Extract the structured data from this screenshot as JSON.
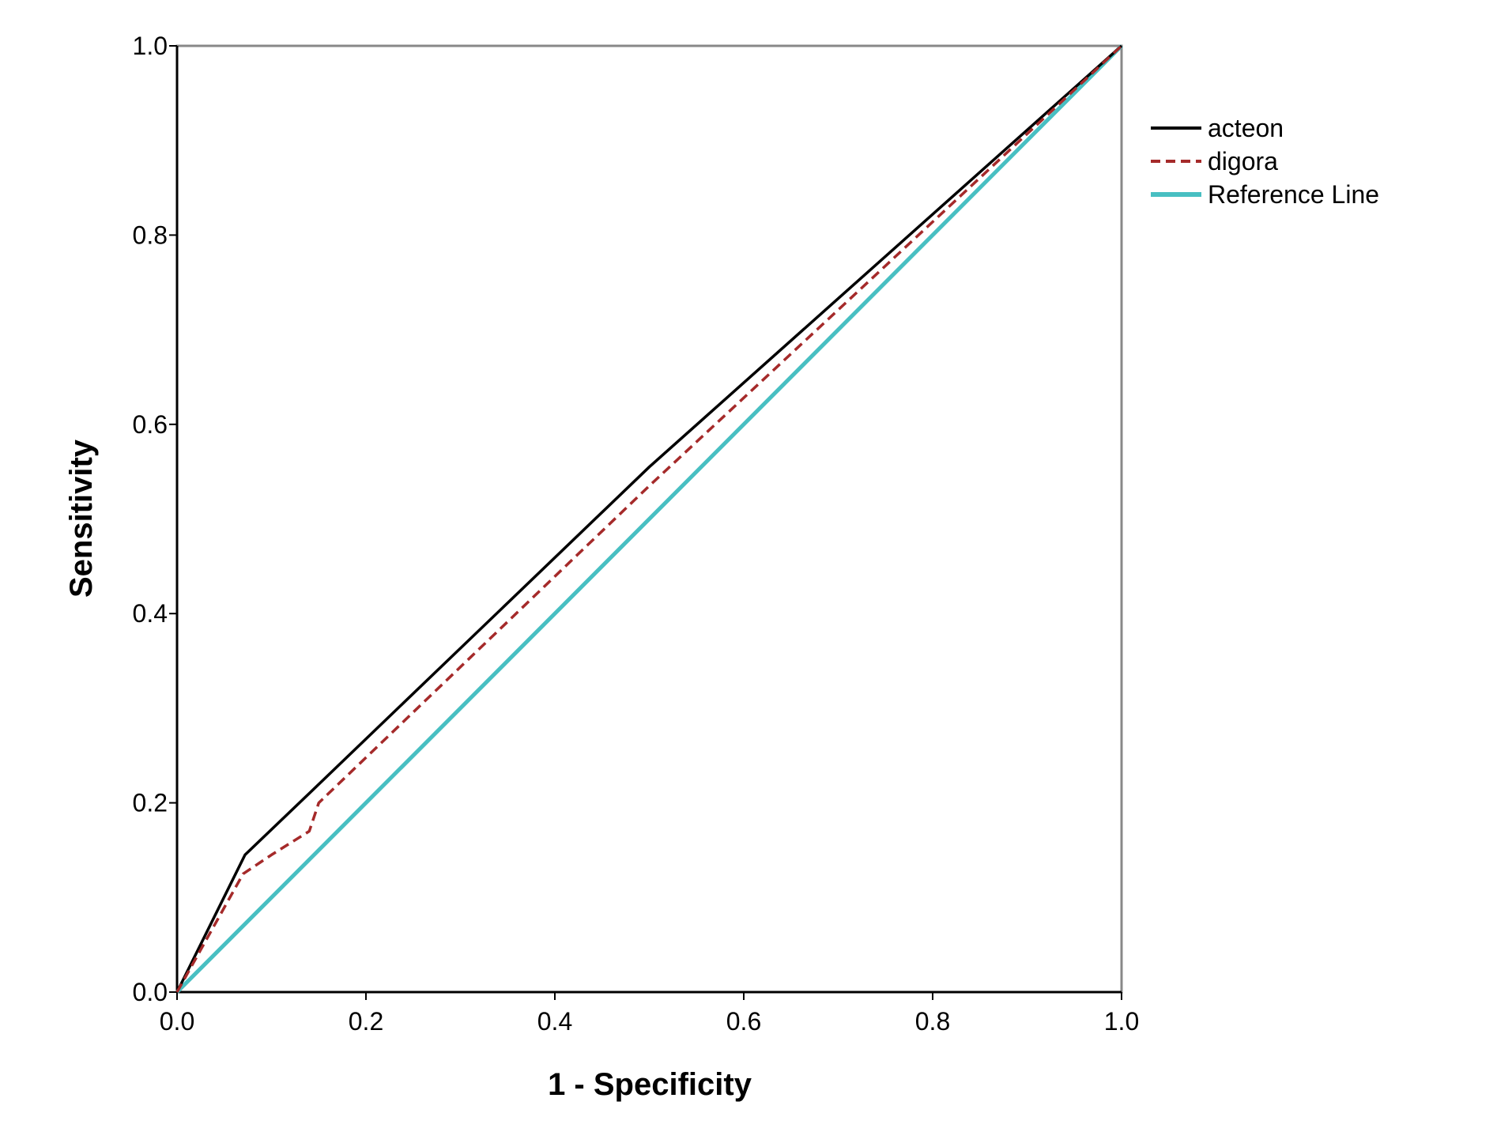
{
  "chart_data": {
    "type": "line",
    "title": "",
    "xlabel": "1 - Specificity",
    "ylabel": "Sensitivity",
    "xlim": [
      0.0,
      1.0
    ],
    "ylim": [
      0.0,
      1.0
    ],
    "x_ticks": [
      "0.0",
      "0.2",
      "0.4",
      "0.6",
      "0.8",
      "1.0"
    ],
    "y_ticks": [
      "0.0",
      "0.2",
      "0.4",
      "0.6",
      "0.8",
      "1.0"
    ],
    "grid": false,
    "legend_position": "right",
    "series": [
      {
        "name": "acteon",
        "color": "#000000",
        "style": "solid",
        "x": [
          0.0,
          0.072,
          0.14,
          0.5,
          1.0
        ],
        "y": [
          0.0,
          0.145,
          0.21,
          0.555,
          1.0
        ]
      },
      {
        "name": "digora",
        "color": "#a52a2a",
        "style": "dashed",
        "x": [
          0.0,
          0.07,
          0.1,
          0.14,
          0.15,
          0.5,
          1.0
        ],
        "y": [
          0.0,
          0.125,
          0.145,
          0.17,
          0.2,
          0.535,
          1.0
        ]
      },
      {
        "name": "Reference Line",
        "color": "#48bfc2",
        "style": "solid",
        "x": [
          0.0,
          1.0
        ],
        "y": [
          0.0,
          1.0
        ]
      }
    ]
  }
}
